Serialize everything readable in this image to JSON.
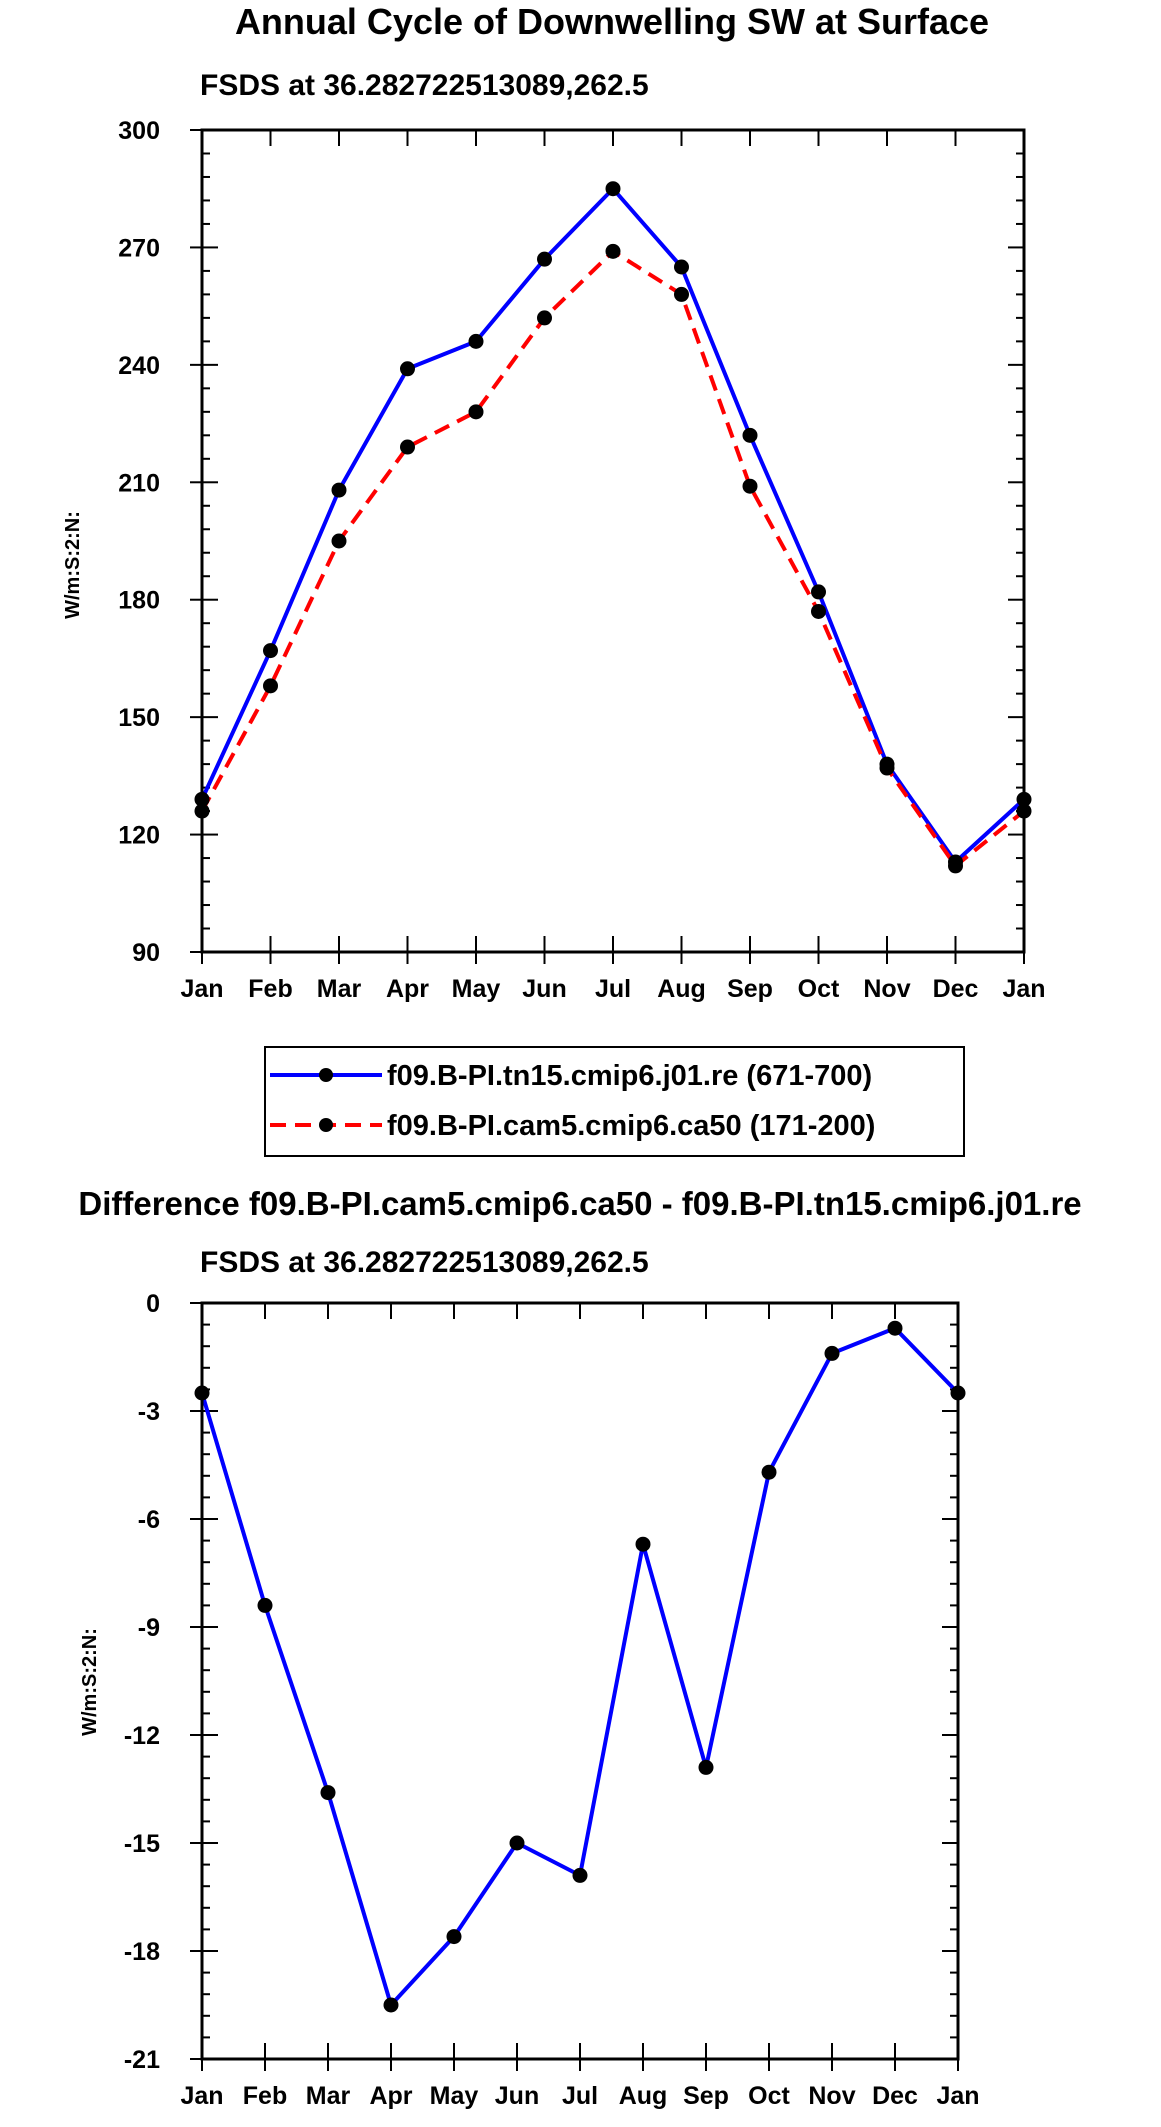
{
  "chart_data": [
    {
      "type": "line",
      "title": "Annual Cycle of Downwelling SW at Surface",
      "subtitle": "FSDS at 36.282722513089,262.5",
      "xlabel": "",
      "ylabel": "W/m:S:2:N:",
      "categories": [
        "Jan",
        "Feb",
        "Mar",
        "Apr",
        "May",
        "Jun",
        "Jul",
        "Aug",
        "Sep",
        "Oct",
        "Nov",
        "Dec",
        "Jan"
      ],
      "yticks": [
        90,
        120,
        150,
        180,
        210,
        240,
        270,
        300
      ],
      "ylim": [
        90,
        300
      ],
      "series": [
        {
          "name": "f09.B-PI.tn15.cmip6.j01.re (671-700)",
          "color": "#0000ff",
          "dash": "solid",
          "values": [
            129,
            167,
            208,
            239,
            246,
            267,
            285,
            265,
            222,
            182,
            138,
            113,
            129
          ]
        },
        {
          "name": "f09.B-PI.cam5.cmip6.ca50 (171-200)",
          "color": "#ff0000",
          "dash": "dashed",
          "values": [
            126,
            158,
            195,
            219,
            228,
            252,
            269,
            258,
            209,
            177,
            137,
            112,
            126
          ]
        }
      ],
      "legend": "below"
    },
    {
      "type": "line",
      "title": "Difference f09.B-PI.cam5.cmip6.ca50 - f09.B-PI.tn15.cmip6.j01.re",
      "subtitle": "FSDS at 36.282722513089,262.5",
      "xlabel": "",
      "ylabel": "W/m:S:2:N:",
      "categories": [
        "Jan",
        "Feb",
        "Mar",
        "Apr",
        "May",
        "Jun",
        "Jul",
        "Aug",
        "Sep",
        "Oct",
        "Nov",
        "Dec",
        "Jan"
      ],
      "yticks": [
        0,
        -3,
        -6,
        -9,
        -12,
        -15,
        -18,
        -21
      ],
      "ylim": [
        -21,
        0
      ],
      "series": [
        {
          "name": "difference",
          "color": "#0000ff",
          "dash": "solid",
          "values": [
            -2.5,
            -8.4,
            -13.6,
            -19.5,
            -17.6,
            -15.0,
            -15.9,
            -6.7,
            -12.9,
            -4.7,
            -1.4,
            -0.7,
            -2.5
          ]
        }
      ]
    }
  ]
}
